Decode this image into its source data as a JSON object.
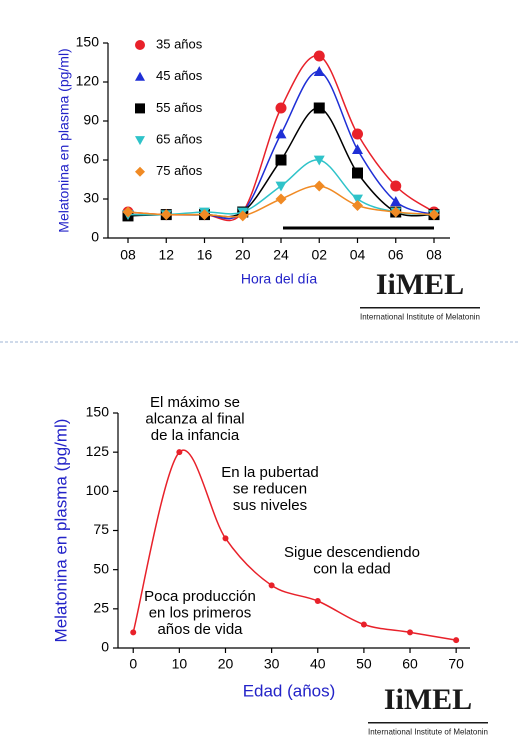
{
  "chart_data": [
    {
      "type": "line",
      "y_label": "Melatonina en plasma (pg/ml)",
      "x_label": "Hora del día",
      "categories": [
        "08",
        "12",
        "16",
        "20",
        "24",
        "02",
        "04",
        "06",
        "08"
      ],
      "ylim": [
        0,
        150
      ],
      "yticks": [
        0,
        30,
        60,
        90,
        120,
        150
      ],
      "legend": "upper left",
      "series": [
        {
          "name": "35 años",
          "color": "#e8212a",
          "marker": "circle",
          "values": [
            20,
            18,
            18,
            20,
            100,
            140,
            80,
            40,
            20
          ]
        },
        {
          "name": "45 años",
          "color": "#1f2fd6",
          "marker": "triangle",
          "values": [
            18,
            18,
            18,
            20,
            80,
            128,
            68,
            28,
            18
          ]
        },
        {
          "name": "55 años",
          "color": "#000000",
          "marker": "square",
          "values": [
            17,
            18,
            18,
            20,
            60,
            100,
            50,
            20,
            18
          ]
        },
        {
          "name": "65 años",
          "color": "#2fc3c9",
          "marker": "triangle-down",
          "values": [
            18,
            18,
            20,
            20,
            40,
            60,
            30,
            20,
            18
          ]
        },
        {
          "name": "75 años",
          "color": "#f08a24",
          "marker": "diamond",
          "values": [
            20,
            18,
            18,
            17,
            30,
            40,
            25,
            20,
            18
          ]
        }
      ],
      "logo": {
        "title": "IiMEL",
        "subtitle": "International Institute of Melatonin"
      }
    },
    {
      "type": "line",
      "y_label": "Melatonina en plasma (pg/ml)",
      "x_label": "Edad (años)",
      "x": [
        0,
        10,
        20,
        30,
        40,
        50,
        60,
        70
      ],
      "xlim": [
        -3.3,
        73
      ],
      "xticks": [
        0,
        10,
        20,
        30,
        40,
        50,
        60,
        70
      ],
      "ylim": [
        0,
        150
      ],
      "yticks": [
        0,
        25,
        50,
        75,
        100,
        125,
        150
      ],
      "series": [
        {
          "name": null,
          "color": "#e8212a",
          "marker": "circle",
          "values": [
            10,
            125,
            70,
            40,
            30,
            15,
            10,
            5
          ]
        }
      ],
      "annotations": [
        [
          "El máximo se",
          "alcanza al final",
          "de la infancia"
        ],
        [
          "En la pubertad",
          "se reducen",
          "sus niveles"
        ],
        [
          "Sigue descendiendo",
          "con la edad"
        ],
        [
          "Poca producción",
          "en los primeros",
          "años de vida"
        ]
      ],
      "logo": {
        "title": "IiMEL",
        "subtitle": "International Institute of Melatonin"
      }
    }
  ]
}
